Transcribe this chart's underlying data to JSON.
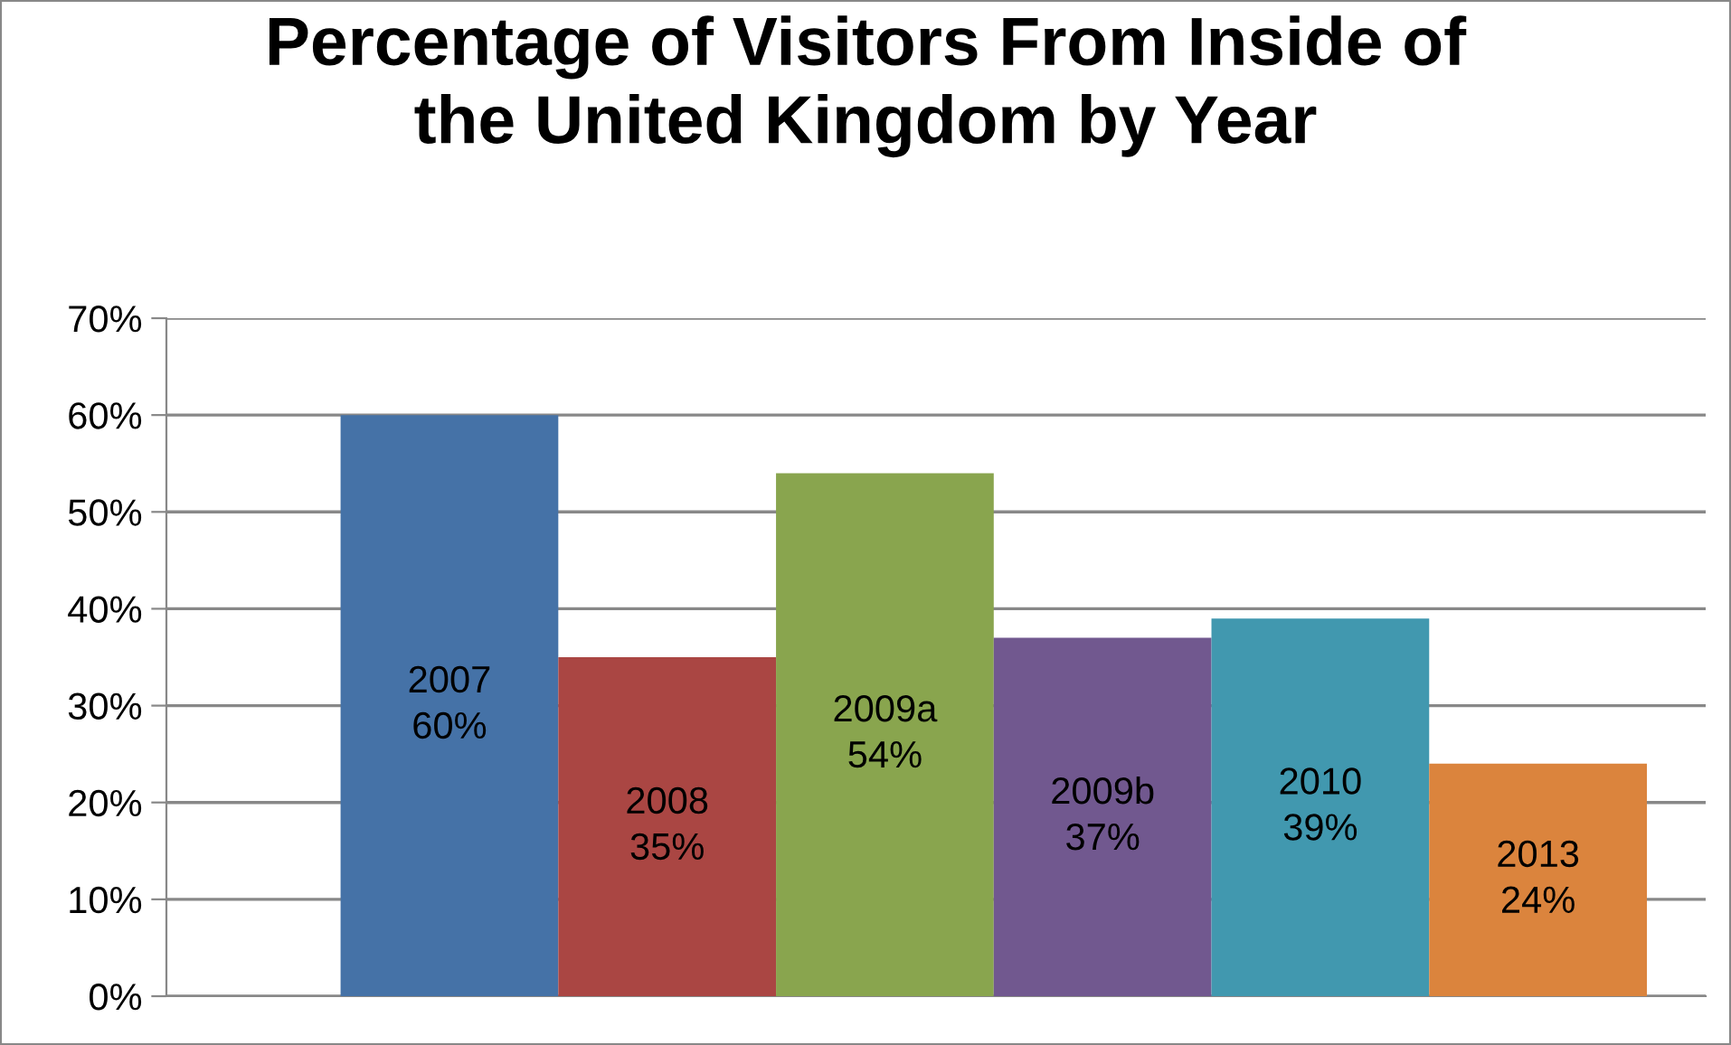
{
  "chart_data": {
    "type": "bar",
    "title": "Percentage of Visitors From Inside of\nthe United Kingdom by Year",
    "categories": [
      "2007",
      "2008",
      "2009a",
      "2009b",
      "2010",
      "2013"
    ],
    "values": [
      60,
      35,
      54,
      37,
      39,
      24
    ],
    "value_labels": [
      "60%",
      "35%",
      "54%",
      "37%",
      "39%",
      "24%"
    ],
    "colors": [
      "#4572a7",
      "#aa4643",
      "#89a54e",
      "#71588f",
      "#4198af",
      "#db843d"
    ],
    "ylim": [
      0,
      70
    ],
    "yticks": [
      {
        "value": 0,
        "label": "0%"
      },
      {
        "value": 10,
        "label": "10%"
      },
      {
        "value": 20,
        "label": "20%"
      },
      {
        "value": 30,
        "label": "30%"
      },
      {
        "value": 40,
        "label": "40%"
      },
      {
        "value": 50,
        "label": "50%"
      },
      {
        "value": 60,
        "label": "60%"
      },
      {
        "value": 70,
        "label": "70%"
      }
    ],
    "grid": "y",
    "legend": false
  }
}
